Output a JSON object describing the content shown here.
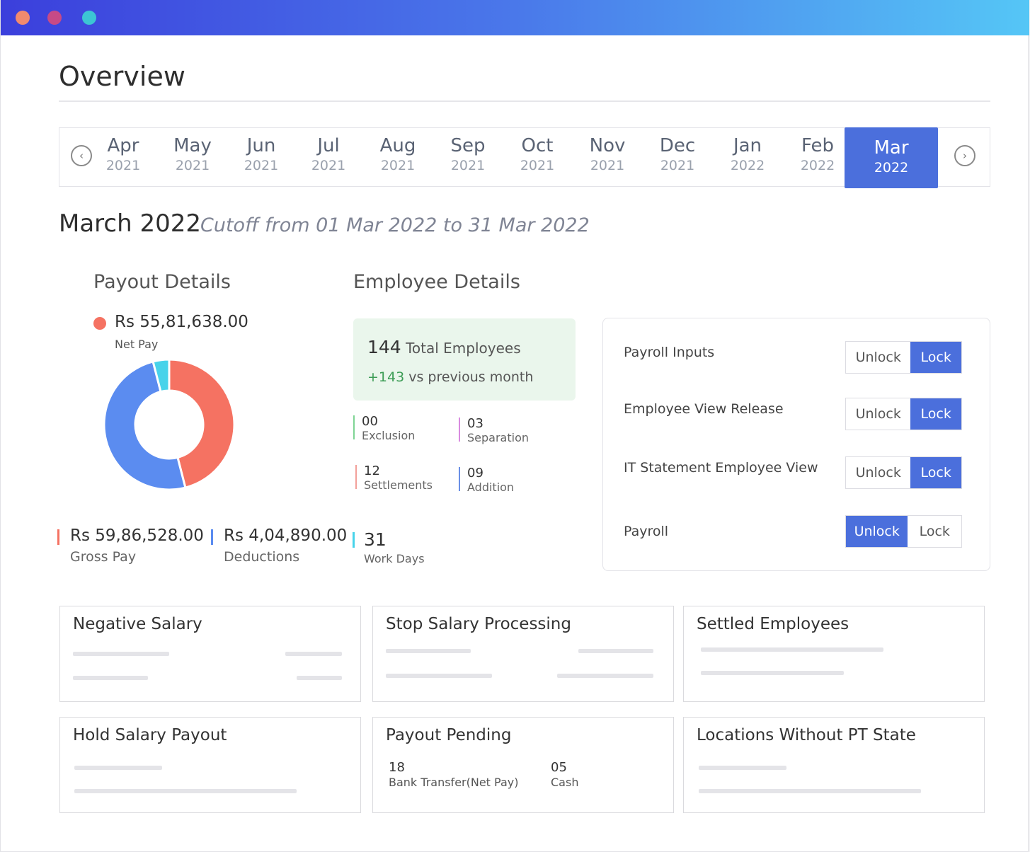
{
  "header": {
    "title": "Overview"
  },
  "months": [
    {
      "month": "Apr",
      "year": "2021"
    },
    {
      "month": "May",
      "year": "2021"
    },
    {
      "month": "Jun",
      "year": "2021"
    },
    {
      "month": "Jul",
      "year": "2021"
    },
    {
      "month": "Aug",
      "year": "2021"
    },
    {
      "month": "Sep",
      "year": "2021"
    },
    {
      "month": "Oct",
      "year": "2021"
    },
    {
      "month": "Nov",
      "year": "2021"
    },
    {
      "month": "Dec",
      "year": "2021"
    },
    {
      "month": "Jan",
      "year": "2022"
    },
    {
      "month": "Feb",
      "year": "2022"
    },
    {
      "month": "Mar",
      "year": "2022"
    }
  ],
  "period": {
    "title": "March 2022",
    "cutoff": "Cutoff from 01 Mar 2022 to 31 Mar 2022"
  },
  "payout": {
    "title": "Payout Details",
    "net_pay_value": "Rs 55,81,638.00",
    "net_pay_label": "Net Pay",
    "gross_value": "Rs 59,86,528.00",
    "gross_label": "Gross Pay",
    "deductions_value": "Rs 4,04,890.00",
    "deductions_label": "Deductions",
    "colors": {
      "net": "#f57262",
      "gross": "#5b8cf0",
      "deductions": "#47d3ea"
    },
    "donut_fractions": {
      "net": 0.46,
      "gross": 0.5,
      "deductions": 0.04
    }
  },
  "employee": {
    "title": "Employee Details",
    "total_count": "144",
    "total_label": "Total Employees",
    "change_value": "+143",
    "change_label": "vs previous month",
    "exclusion_value": "00",
    "exclusion_label": "Exclusion",
    "separation_value": "03",
    "separation_label": "Separation",
    "settlements_value": "12",
    "settlements_label": "Settlements",
    "addition_value": "09",
    "addition_label": "Addition",
    "work_days_value": "31",
    "work_days_label": "Work Days"
  },
  "locks": {
    "unlock_label": "Unlock",
    "lock_label": "Lock",
    "rows": [
      {
        "label": "Payroll Inputs",
        "state": "lock"
      },
      {
        "label": "Employee View Release",
        "state": "lock"
      },
      {
        "label": "IT Statement Employee View",
        "state": "lock"
      },
      {
        "label": "Payroll",
        "state": "unlock"
      }
    ]
  },
  "cards": {
    "negative_salary": "Negative Salary",
    "stop_salary": "Stop Salary Processing",
    "settled": "Settled Employees",
    "hold_salary": "Hold Salary Payout",
    "payout_pending": "Payout Pending",
    "locations": "Locations Without PT State",
    "bank_value": "18",
    "bank_label": "Bank Transfer(Net Pay)",
    "cash_value": "05",
    "cash_label": "Cash"
  }
}
